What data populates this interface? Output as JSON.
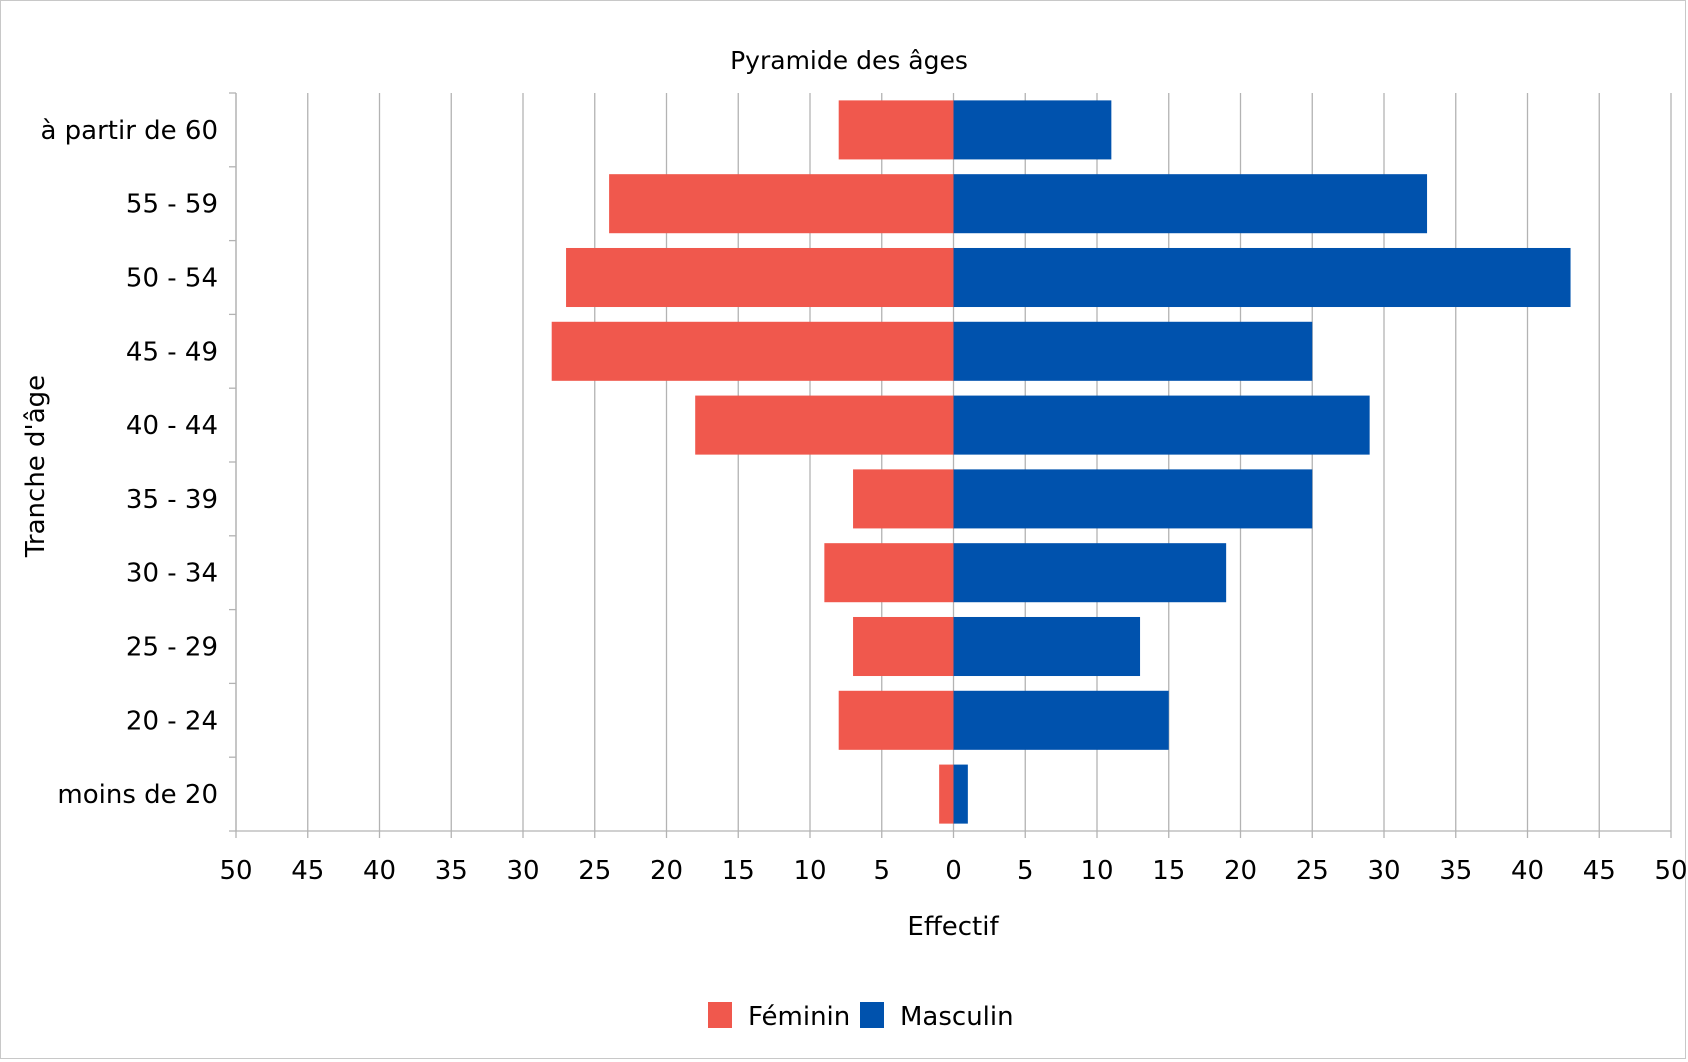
{
  "chart_data": {
    "type": "bar",
    "orientation": "horizontal",
    "title": "Pyramide des âges",
    "xlabel": "Effectif",
    "ylabel": "Tranche d'âge",
    "categories": [
      "à partir de 60",
      "55 - 59",
      "50 - 54",
      "45 - 49",
      "40 - 44",
      "35 - 39",
      "30 - 34",
      "25 - 29",
      "20 - 24",
      "moins de 20"
    ],
    "series": [
      {
        "name": "Féminin",
        "color": "#f0584d",
        "side": "left",
        "values": [
          8,
          24,
          27,
          28,
          18,
          7,
          9,
          7,
          8,
          1
        ]
      },
      {
        "name": "Masculin",
        "color": "#0052ad",
        "side": "right",
        "values": [
          11,
          33,
          43,
          25,
          29,
          25,
          19,
          13,
          15,
          1
        ]
      }
    ],
    "xlim": [
      -50,
      50
    ],
    "x_ticks": [
      50,
      45,
      40,
      35,
      30,
      25,
      20,
      15,
      10,
      5,
      0,
      5,
      10,
      15,
      20,
      25,
      30,
      35,
      40,
      45,
      50
    ],
    "grid": true,
    "legend_position": "bottom-center"
  }
}
